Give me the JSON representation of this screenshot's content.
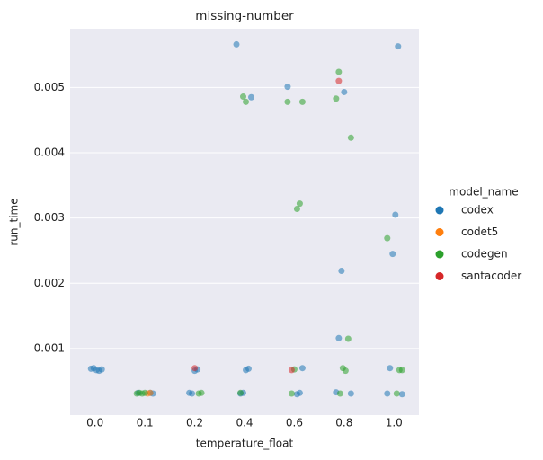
{
  "chart_data": {
    "type": "scatter",
    "title": "missing-number",
    "x_label": "temperature_float",
    "y_label": "run_time",
    "legend_title": "model_name",
    "legend_position": "right",
    "grid": true,
    "categories": [
      "0.0",
      "0.1",
      "0.2",
      "0.4",
      "0.6",
      "0.8",
      "1.0"
    ],
    "ylim": [
      -2e-05,
      0.0059
    ],
    "yticks": [
      0.001,
      0.002,
      0.003,
      0.004,
      0.005
    ],
    "series": [
      {
        "name": "codex",
        "color": "#1f77b4",
        "x": [
          "0.0",
          "0.0",
          "0.0",
          "0.0",
          "0.0",
          "0.1",
          "0.1",
          "0.1",
          "0.2",
          "0.2",
          "0.2",
          "0.2",
          "0.4",
          "0.4",
          "0.4",
          "0.4",
          "0.4",
          "0.4",
          "0.6",
          "0.6",
          "0.6",
          "0.6",
          "0.8",
          "0.8",
          "0.8",
          "0.8",
          "0.8",
          "1.0",
          "1.0",
          "1.0",
          "1.0",
          "1.0",
          "1.0"
        ],
        "values": [
          0.00068,
          0.00066,
          0.00067,
          0.0007,
          0.00069,
          0.00032,
          0.00031,
          0.00032,
          0.00068,
          0.00066,
          0.00031,
          0.00032,
          0.00566,
          0.00485,
          0.00069,
          0.00067,
          0.00032,
          0.00031,
          0.00501,
          0.0007,
          0.00032,
          0.0003,
          0.00493,
          0.00219,
          0.00116,
          0.00033,
          0.00031,
          0.00563,
          0.00305,
          0.00245,
          0.0007,
          0.00031,
          0.0003
        ]
      },
      {
        "name": "codet5",
        "color": "#ff7f0e",
        "x": [
          "0.1",
          "0.1"
        ],
        "values": [
          0.00032,
          0.00031
        ]
      },
      {
        "name": "codegen",
        "color": "#2ca02c",
        "x": [
          "0.1",
          "0.1",
          "0.1",
          "0.1",
          "0.2",
          "0.2",
          "0.4",
          "0.4",
          "0.4",
          "0.6",
          "0.6",
          "0.6",
          "0.6",
          "0.6",
          "0.6",
          "0.8",
          "0.8",
          "0.8",
          "0.8",
          "0.8",
          "0.8",
          "0.8",
          "1.0",
          "1.0",
          "1.0",
          "1.0"
        ],
        "values": [
          0.00032,
          0.00031,
          0.00032,
          0.00031,
          0.00032,
          0.00031,
          0.00478,
          0.00486,
          0.00032,
          0.00478,
          0.00478,
          0.00322,
          0.00314,
          0.00068,
          0.00031,
          0.00524,
          0.00483,
          0.00423,
          0.00115,
          0.00066,
          0.0007,
          0.00031,
          0.00269,
          0.00067,
          0.00067,
          0.00031
        ]
      },
      {
        "name": "santacoder",
        "color": "#d62728",
        "x": [
          "0.2",
          "0.6",
          "0.8"
        ],
        "values": [
          0.0007,
          0.00067,
          0.0051
        ]
      }
    ]
  }
}
